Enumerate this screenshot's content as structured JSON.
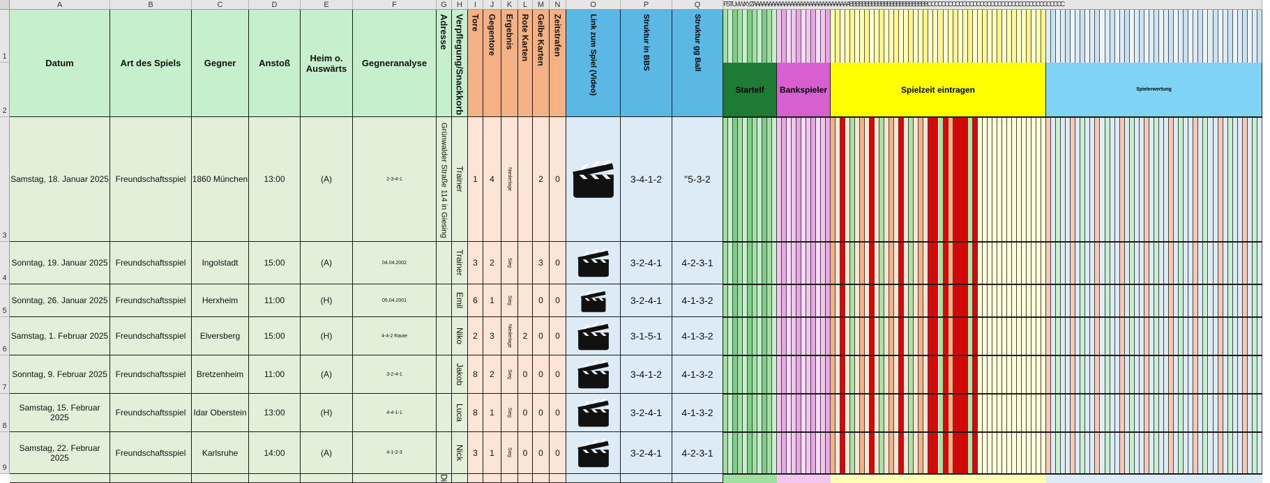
{
  "columns": [
    "A",
    "B",
    "C",
    "D",
    "E",
    "F",
    "G",
    "H",
    "I",
    "J",
    "K",
    "L",
    "M",
    "N",
    "O",
    "P",
    "Q"
  ],
  "extra_col_letters": "FSTUVWXYZAAAAAAAAAAAAAAAAAAAAAAAAAAAAAAABBBBBBBBBBBBBBBBBBBBBBBBBCCCCCCCCCCCCCCCCCCCCCCCCCCCCCCCCCCCCCCC",
  "rows": [
    "1",
    "2",
    "3",
    "4",
    "5",
    "6",
    "7",
    "8",
    "9"
  ],
  "headers": {
    "datum": "Datum",
    "art": "Art des Spiels",
    "gegner": "Gegner",
    "anstoss": "Anstoß",
    "heim": "Heim o. Auswärts",
    "analyse": "Gegneranalyse",
    "adresse": "Adresse",
    "verpflegung": "Verpflegung/Snackkorb",
    "tore": "Tore",
    "gegentore": "Gegentore",
    "ergebnis": "Ergebnis",
    "rote": "Rote Karten",
    "gelbe": "Gelbe Karten",
    "zeitstrafen": "Zeitstrafen",
    "link": "Link zum Spiel (Video)",
    "struktur_bbs": "Struktur in BBS",
    "struktur_gg": "Struktur gg Ball"
  },
  "bands": {
    "startelf": "Startelf",
    "bankspieler": "Bankspieler",
    "spielzeit": "Spielzeit eintragen",
    "spielerwertung": "Spielerwertung"
  },
  "colors": {
    "green_header": "#c6efce",
    "green_body": "#e2f0d9",
    "orange_header": "#f4b183",
    "orange_body": "#fce4d6",
    "blue_header": "#5bb8e4",
    "blue_body": "#ddebf7",
    "dark_green": "#1e7b34",
    "purple": "#d85fd0",
    "yellow": "#ffff00",
    "red_fill": "#e60000"
  },
  "games": [
    {
      "datum": "Samstag, 18. Januar 2025",
      "art": "Freundschaftsspiel",
      "gegner": "1860 München",
      "anstoss": "13:00",
      "heim": "(A)",
      "analyse": "2-3-4-1",
      "adresse": "Grünwalder Straße 114 in Giesing",
      "verpflegung": "Trainer",
      "tore": "1",
      "gegentore": "4",
      "ergebnis": "Niederlage",
      "rote": "",
      "gelbe": "2",
      "zeit": "0",
      "bbs": "3-4-1-2",
      "gg": "\"5-3-2"
    },
    {
      "datum": "Sonntag, 19. Januar 2025",
      "art": "Freundschaftsspiel",
      "gegner": "Ingolstadt",
      "anstoss": "15:00",
      "heim": "(A)",
      "analyse": "04.04.2002",
      "adresse": "",
      "verpflegung": "Trainer",
      "tore": "3",
      "gegentore": "2",
      "ergebnis": "Sieg",
      "rote": "",
      "gelbe": "3",
      "zeit": "0",
      "bbs": "3-2-4-1",
      "gg": "4-2-3-1"
    },
    {
      "datum": "Sonntag, 26. Januar 2025",
      "art": "Freundschaftsspiel",
      "gegner": "Herxheim",
      "anstoss": "11:00",
      "heim": "(H)",
      "analyse": "05.04.2001",
      "adresse": "",
      "verpflegung": "Emil",
      "tore": "6",
      "gegentore": "1",
      "ergebnis": "Sieg",
      "rote": "",
      "gelbe": "0",
      "zeit": "0",
      "bbs": "3-2-4-1",
      "gg": "4-1-3-2"
    },
    {
      "datum": "Samstag, 1. Februar 2025",
      "art": "Freundschaftsspiel",
      "gegner": "Elversberg",
      "anstoss": "15:00",
      "heim": "(H)",
      "analyse": "4-4-2 Raute",
      "adresse": "",
      "verpflegung": "Niko",
      "tore": "2",
      "gegentore": "3",
      "ergebnis": "Niederlage",
      "rote": "2",
      "gelbe": "0",
      "zeit": "0",
      "bbs": "3-1-5-1",
      "gg": "4-1-3-2"
    },
    {
      "datum": "Sonntag, 9. Februar 2025",
      "art": "Freundschaftsspiel",
      "gegner": "Bretzenheim",
      "anstoss": "11:00",
      "heim": "(A)",
      "analyse": "3-2-4-1",
      "adresse": "",
      "verpflegung": "Jakob",
      "tore": "8",
      "gegentore": "2",
      "ergebnis": "Sieg",
      "rote": "0",
      "gelbe": "0",
      "zeit": "0",
      "bbs": "3-4-1-2",
      "gg": "4-1-3-2"
    },
    {
      "datum": "Samstag, 15. Februar 2025",
      "art": "Freundschaftsspiel",
      "gegner": "Idar Oberstein",
      "anstoss": "13:00",
      "heim": "(H)",
      "analyse": "4-4-1-1",
      "adresse": "",
      "verpflegung": "Luca",
      "tore": "8",
      "gegentore": "1",
      "ergebnis": "Sieg",
      "rote": "0",
      "gelbe": "0",
      "zeit": "0",
      "bbs": "3-2-4-1",
      "gg": "4-1-3-2"
    },
    {
      "datum": "Samstag, 22. Februar 2025",
      "art": "Freundschaftsspiel",
      "gegner": "Karlsruhe",
      "anstoss": "14:00",
      "heim": "(A)",
      "analyse": "4-1-2-3",
      "adresse": "",
      "verpflegung": "Nick",
      "tore": "3",
      "gegentore": "1",
      "ergebnis": "Sieg",
      "rote": "0",
      "gelbe": "0",
      "zeit": "0",
      "bbs": "3-2-4-1",
      "gg": "4-2-3-1"
    }
  ],
  "partial_row_text": "Di"
}
